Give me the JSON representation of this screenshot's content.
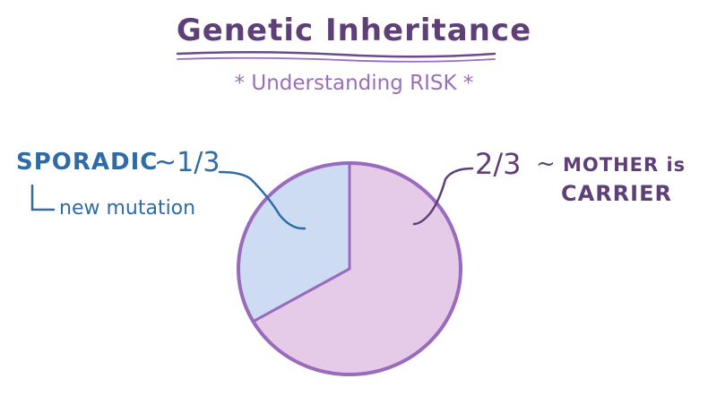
{
  "header": {
    "title": "Genetic Inheritance",
    "subtitle": "* Understanding RISK *"
  },
  "colors": {
    "title": "#5e3f78",
    "subtitle": "#9a6fb6",
    "sporadic_fill": "#cddcf2",
    "carrier_fill": "#e6cbe8",
    "pie_stroke": "#9a6bbd",
    "blue_text": "#2f6ca6",
    "purple_text": "#5e3f78"
  },
  "annotations": {
    "sporadic": {
      "label": "SPORADIC",
      "fraction": "~1/3",
      "sublabel": "new mutation"
    },
    "carrier": {
      "fraction": "2/3",
      "tilde": "~",
      "label_line1": "MOTHER is",
      "label_line2": "CARRIER"
    }
  },
  "chart_data": {
    "type": "pie",
    "slices": [
      {
        "label": "SPORADIC",
        "value": 0.333
      },
      {
        "label": "MOTHER is CARRIER",
        "value": 0.667
      }
    ]
  }
}
